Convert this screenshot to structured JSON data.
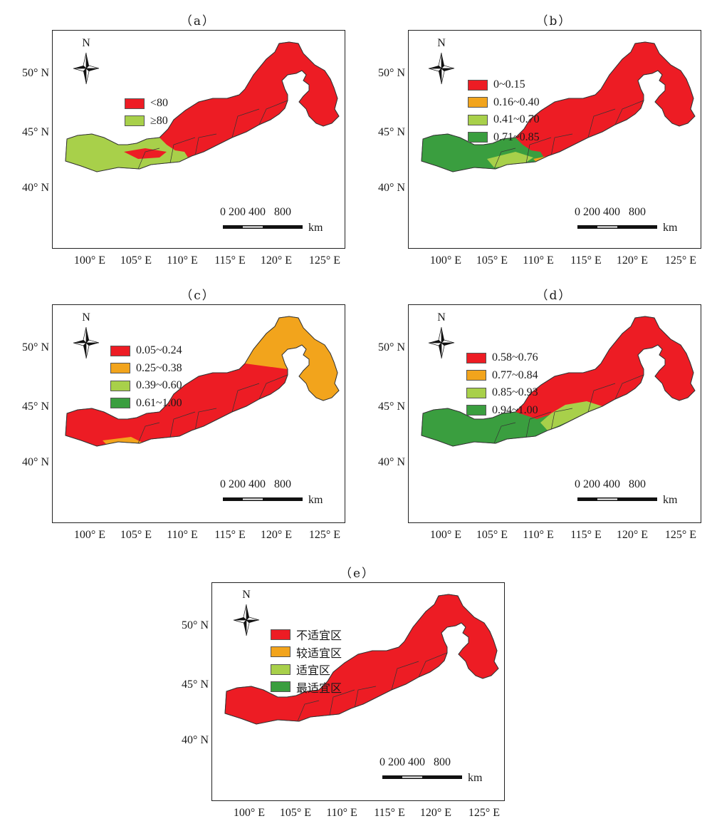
{
  "colors": {
    "red": "#ed1c24",
    "orange": "#f2a41c",
    "lightgreen": "#a8d04a",
    "green": "#3a9e3f",
    "border": "#333333"
  },
  "axes": {
    "lat_labels": [
      "50° N",
      "45° N",
      "40° N"
    ],
    "lon_labels": [
      "100° E",
      "105° E",
      "110° E",
      "115° E",
      "120° E",
      "125° E"
    ]
  },
  "north_label": "N",
  "scalebar": {
    "ticks": "0 200 400   800",
    "unit": "km"
  },
  "panels": [
    {
      "label": "（a）",
      "legend": [
        {
          "text": "<80",
          "color": "#ed1c24"
        },
        {
          "text": "≥80",
          "color": "#a8d04a"
        }
      ]
    },
    {
      "label": "（b）",
      "legend": [
        {
          "text": "0~0.15",
          "color": "#ed1c24"
        },
        {
          "text": "0.16~0.40",
          "color": "#f2a41c"
        },
        {
          "text": "0.41~0.70",
          "color": "#a8d04a"
        },
        {
          "text": "0.71~0.85",
          "color": "#3a9e3f"
        }
      ]
    },
    {
      "label": "（c）",
      "legend": [
        {
          "text": "0.05~0.24",
          "color": "#ed1c24"
        },
        {
          "text": "0.25~0.38",
          "color": "#f2a41c"
        },
        {
          "text": "0.39~0.60",
          "color": "#a8d04a"
        },
        {
          "text": "0.61~1.00",
          "color": "#3a9e3f"
        }
      ]
    },
    {
      "label": "（d）",
      "legend": [
        {
          "text": "0.58~0.76",
          "color": "#ed1c24"
        },
        {
          "text": "0.77~0.84",
          "color": "#f2a41c"
        },
        {
          "text": "0.85~0.93",
          "color": "#a8d04a"
        },
        {
          "text": "0.94~1.00",
          "color": "#3a9e3f"
        }
      ]
    },
    {
      "label": "（e）",
      "legend": [
        {
          "text": "不适宜区",
          "color": "#ed1c24"
        },
        {
          "text": "较适宜区",
          "color": "#f2a41c"
        },
        {
          "text": "适宜区",
          "color": "#a8d04a"
        },
        {
          "text": "最适宜区",
          "color": "#3a9e3f"
        }
      ]
    }
  ]
}
